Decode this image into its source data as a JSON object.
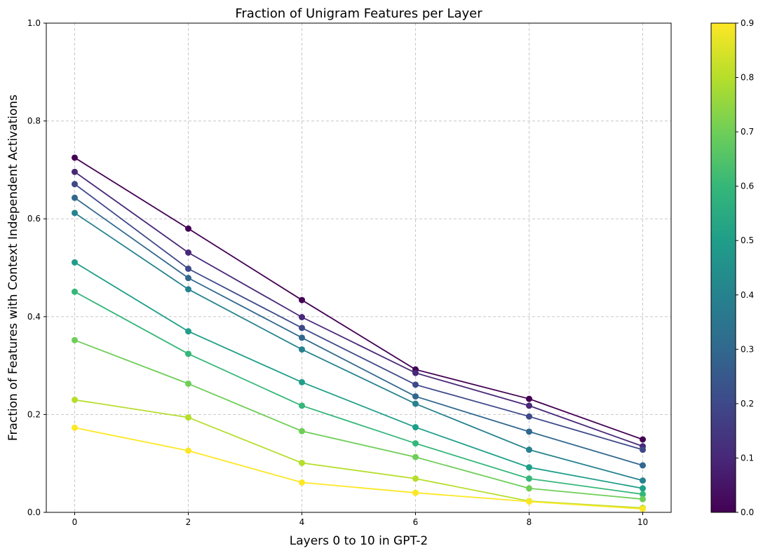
{
  "chart_data": {
    "type": "line",
    "title": "Fraction of Unigram Features per Layer",
    "xlabel": "Layers 0 to 10 in GPT-2",
    "ylabel": "Fraction of Features with Context Independent Activations",
    "x": [
      0,
      2,
      4,
      6,
      8,
      10
    ],
    "xlim": [
      -0.5,
      10.5
    ],
    "ylim": [
      0,
      1.0
    ],
    "xticks": [
      "0",
      "2",
      "4",
      "6",
      "8",
      "10"
    ],
    "yticks": [
      "0.0",
      "0.2",
      "0.4",
      "0.6",
      "0.8",
      "1.0"
    ],
    "grid": true,
    "series": [
      {
        "name": "0.0",
        "color": "#440154",
        "values": [
          0.725,
          0.58,
          0.434,
          0.292,
          0.232,
          0.149
        ]
      },
      {
        "name": "0.1",
        "color": "#482878",
        "values": [
          0.696,
          0.531,
          0.399,
          0.285,
          0.218,
          0.135
        ]
      },
      {
        "name": "0.2",
        "color": "#3e4989",
        "values": [
          0.671,
          0.498,
          0.377,
          0.261,
          0.196,
          0.128
        ]
      },
      {
        "name": "0.3",
        "color": "#31688e",
        "values": [
          0.643,
          0.479,
          0.357,
          0.237,
          0.165,
          0.096
        ]
      },
      {
        "name": "0.4",
        "color": "#26828e",
        "values": [
          0.612,
          0.456,
          0.333,
          0.222,
          0.128,
          0.065
        ]
      },
      {
        "name": "0.5",
        "color": "#1f9e89",
        "values": [
          0.511,
          0.37,
          0.266,
          0.174,
          0.092,
          0.049
        ]
      },
      {
        "name": "0.6",
        "color": "#35b779",
        "values": [
          0.451,
          0.324,
          0.218,
          0.141,
          0.069,
          0.037
        ]
      },
      {
        "name": "0.7",
        "color": "#6ece58",
        "values": [
          0.352,
          0.263,
          0.166,
          0.113,
          0.049,
          0.027
        ]
      },
      {
        "name": "0.8",
        "color": "#b5de2b",
        "values": [
          0.23,
          0.194,
          0.101,
          0.069,
          0.023,
          0.009
        ]
      },
      {
        "name": "0.9",
        "color": "#fde725",
        "values": [
          0.173,
          0.126,
          0.061,
          0.04,
          0.022,
          0.007
        ]
      }
    ],
    "colorbar": {
      "range": [
        0.0,
        0.9
      ],
      "ticks": [
        "0.0",
        "0.1",
        "0.2",
        "0.3",
        "0.4",
        "0.5",
        "0.6",
        "0.7",
        "0.8",
        "0.9"
      ],
      "colors": [
        "#440154",
        "#482878",
        "#3e4989",
        "#31688e",
        "#26828e",
        "#1f9e89",
        "#35b779",
        "#6ece58",
        "#b5de2b",
        "#fde725"
      ]
    }
  }
}
